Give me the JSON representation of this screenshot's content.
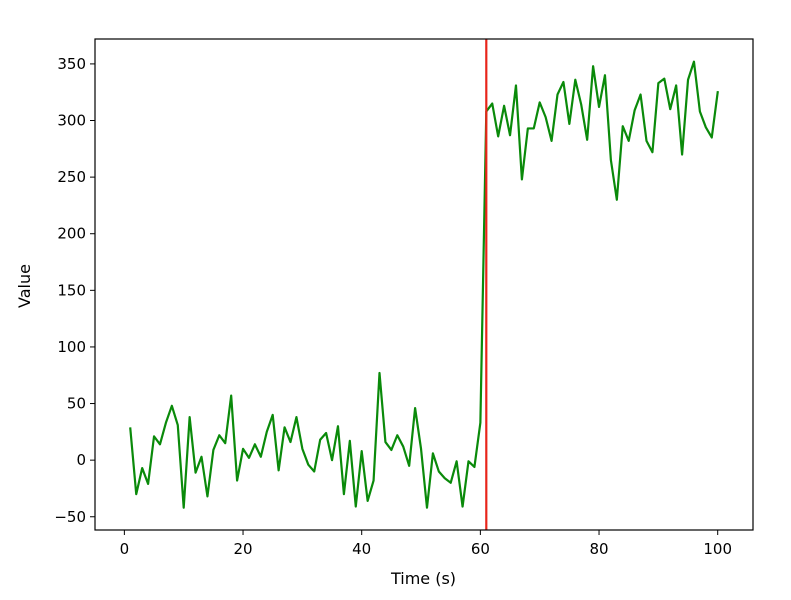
{
  "chart_data": {
    "type": "line",
    "title": "",
    "xlabel": "Time (s)",
    "ylabel": "Value",
    "xlim": [
      -4.95,
      105.95
    ],
    "ylim": [
      -61.7,
      372.0
    ],
    "xticks": [
      0,
      20,
      40,
      60,
      80,
      100
    ],
    "yticks": [
      -50,
      0,
      50,
      100,
      150,
      200,
      250,
      300,
      350
    ],
    "grid": false,
    "legend": "none",
    "vline": {
      "x": 61,
      "color": "#e8251a"
    },
    "series": [
      {
        "color": "#0a8a0a",
        "x": [
          1,
          2,
          3,
          4,
          5,
          6,
          7,
          8,
          9,
          10,
          11,
          12,
          13,
          14,
          15,
          16,
          17,
          18,
          19,
          20,
          21,
          22,
          23,
          24,
          25,
          26,
          27,
          28,
          29,
          30,
          31,
          32,
          33,
          34,
          35,
          36,
          37,
          38,
          39,
          40,
          41,
          42,
          43,
          44,
          45,
          46,
          47,
          48,
          49,
          50,
          51,
          52,
          53,
          54,
          55,
          56,
          57,
          58,
          59,
          60,
          61,
          62,
          63,
          64,
          65,
          66,
          67,
          68,
          69,
          70,
          71,
          72,
          73,
          74,
          75,
          76,
          77,
          78,
          79,
          80,
          81,
          82,
          83,
          84,
          85,
          86,
          87,
          88,
          89,
          90,
          91,
          92,
          93,
          94,
          95,
          96,
          97,
          98,
          99,
          100
        ],
        "values": [
          28,
          -30,
          -7,
          -21,
          21,
          14,
          33,
          48,
          31,
          -42,
          38,
          -11,
          3,
          -32,
          9,
          22,
          15,
          57,
          -18,
          10,
          2,
          14,
          3,
          25,
          40,
          -9,
          29,
          16,
          38,
          10,
          -4,
          -10,
          18,
          24,
          0,
          30,
          -30,
          17,
          -41,
          8,
          -36,
          -18,
          77,
          16,
          9,
          22,
          12,
          -5,
          46,
          10,
          -42,
          6,
          -10,
          -16,
          -20,
          -1,
          -41,
          -1,
          -6,
          33,
          308,
          315,
          286,
          313,
          287,
          331,
          248,
          293,
          293,
          316,
          303,
          282,
          323,
          334,
          297,
          336,
          314,
          283,
          348,
          312,
          340,
          265,
          230,
          295,
          282,
          309,
          323,
          282,
          272,
          333,
          337,
          310,
          331,
          270,
          336,
          352,
          308,
          294,
          285,
          325
        ]
      }
    ]
  }
}
